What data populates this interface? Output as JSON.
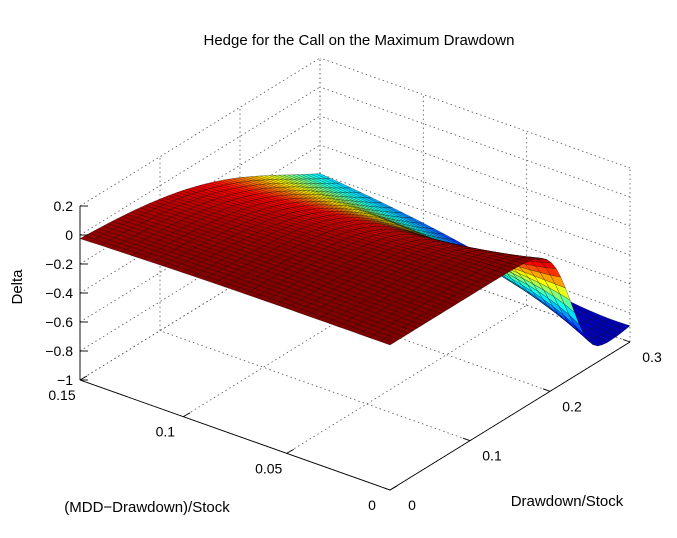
{
  "chart_data": {
    "type": "surface",
    "title": "Hedge for the Call on the Maximum Drawdown",
    "xlabel": "Drawdown/Stock",
    "ylabel": "(MDD−Drawdown)/Stock",
    "zlabel": "Delta",
    "xlim": [
      0,
      0.3
    ],
    "ylim": [
      0,
      0.15
    ],
    "zlim": [
      -1,
      0.2
    ],
    "xticks": [
      0,
      0.1,
      0.2,
      0.3
    ],
    "xtick_labels": [
      "0",
      "0.1",
      "0.2",
      "0.3"
    ],
    "yticks": [
      0,
      0.05,
      0.1,
      0.15
    ],
    "ytick_labels": [
      "0",
      "0.05",
      "0.1",
      "0.15"
    ],
    "zticks": [
      -1,
      -0.8,
      -0.6,
      -0.4,
      -0.2,
      0,
      0.2
    ],
    "ztick_labels": [
      "−1",
      "−0.8",
      "−0.6",
      "−0.4",
      "−0.2",
      "0",
      "0.2"
    ],
    "grid": true,
    "colormap": "jet",
    "colormap_stops": [
      "#00008f",
      "#0000ff",
      "#00ffff",
      "#ffff00",
      "#ff0000",
      "#800000"
    ],
    "mesh_color": "#000000",
    "surface": {
      "description_of_shape": "Delta is about 0 for small drawdown, then falls toward about -0.95 as drawdown approaches 0.3; the drop is sharper for small (MDD-Drawdown)/Stock.",
      "x_grid": [
        0.0,
        0.03,
        0.06,
        0.09,
        0.12,
        0.15,
        0.18,
        0.21,
        0.24,
        0.27,
        0.3
      ],
      "y_grid": [
        0.0,
        0.03,
        0.06,
        0.09,
        0.12,
        0.15
      ],
      "z_sample_rows": [
        {
          "y": 0.0,
          "z": [
            0.0,
            0.0,
            0.0,
            0.0,
            0.0,
            -0.01,
            -0.08,
            -0.35,
            -0.78,
            -0.94,
            -0.93
          ]
        },
        {
          "y": 0.03,
          "z": [
            0.0,
            0.0,
            0.0,
            0.0,
            -0.01,
            -0.04,
            -0.14,
            -0.38,
            -0.7,
            -0.88,
            -0.92
          ]
        },
        {
          "y": 0.06,
          "z": [
            0.0,
            0.0,
            0.0,
            0.0,
            -0.02,
            -0.07,
            -0.18,
            -0.37,
            -0.6,
            -0.78,
            -0.87
          ]
        },
        {
          "y": 0.09,
          "z": [
            0.0,
            0.0,
            0.0,
            -0.01,
            -0.03,
            -0.09,
            -0.2,
            -0.35,
            -0.52,
            -0.68,
            -0.79
          ]
        },
        {
          "y": 0.12,
          "z": [
            0.0,
            0.0,
            0.0,
            -0.01,
            -0.04,
            -0.1,
            -0.2,
            -0.32,
            -0.46,
            -0.6,
            -0.71
          ]
        },
        {
          "y": 0.15,
          "z": [
            0.0,
            0.0,
            0.0,
            -0.01,
            -0.04,
            -0.11,
            -0.2,
            -0.31,
            -0.43,
            -0.54,
            -0.63
          ]
        }
      ]
    }
  }
}
